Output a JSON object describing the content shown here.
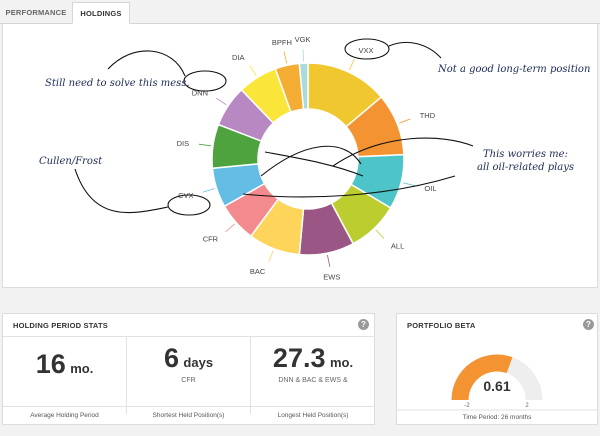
{
  "tabs": [
    {
      "label": "PERFORMANCE",
      "active": false
    },
    {
      "label": "HOLDINGS",
      "active": true
    }
  ],
  "chart_data": {
    "type": "pie",
    "donut": true,
    "categories": [
      "VXX",
      "THD",
      "OIL",
      "ALL",
      "EWS",
      "BAC",
      "CFR",
      "CVX",
      "DIS",
      "DNN",
      "DIA",
      "BPFH",
      "VGK"
    ],
    "values": [
      13.5,
      10.2,
      9.0,
      8.5,
      9.0,
      8.5,
      6.5,
      6.5,
      7.2,
      6.8,
      6.5,
      4.0,
      1.4
    ],
    "colors": [
      "#f1c730",
      "#f39332",
      "#4dc4c8",
      "#bccd2f",
      "#9a5685",
      "#fed55a",
      "#f38b8e",
      "#64bde4",
      "#4fa33f",
      "#b788c1",
      "#fae63a",
      "#f2ad32",
      "#a9dadd"
    ],
    "legend": "none"
  },
  "annotations": [
    {
      "text": "Still need to solve this mess."
    },
    {
      "text": "Not a good long-term position"
    },
    {
      "text": "Cullen/Frost"
    },
    {
      "text": "This worries me:"
    },
    {
      "text": "all oil-related plays"
    }
  ],
  "holding_stats": {
    "title": "HOLDING PERIOD STATS",
    "columns": [
      {
        "value": "16",
        "unit": "mo.",
        "sub": "",
        "footer": "Average Holding Period"
      },
      {
        "value": "6",
        "unit": "days",
        "sub": "CFR",
        "footer": "Shortest Held Position(s)"
      },
      {
        "value": "27.3",
        "unit": "mo.",
        "sub": "DNN & BAC & EWS &",
        "footer": "Longest Held Position(s)"
      }
    ]
  },
  "portfolio_beta": {
    "title": "PORTFOLIO BETA",
    "value": "0.61",
    "gauge_fraction": 0.61,
    "min_label": "-2",
    "max_label": "2",
    "footer": "Time Period: 26 months",
    "fill_color": "#f39332",
    "track_color": "#eeeeee"
  }
}
